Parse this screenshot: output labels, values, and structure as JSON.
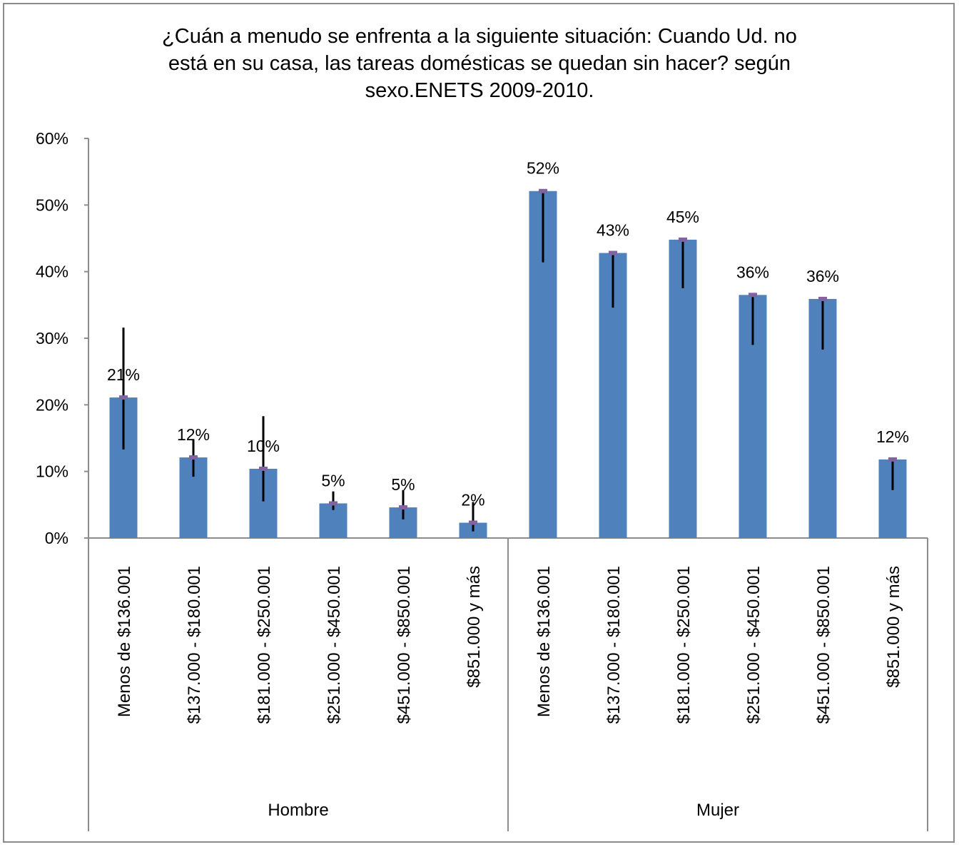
{
  "chart_data": {
    "type": "bar",
    "title_lines": [
      "¿Cuán a menudo se enfrenta a la siguiente situación: Cuando Ud. no",
      "está en su casa, las tareas domésticas se quedan sin hacer? según",
      "sexo.ENETS 2009-2010."
    ],
    "groups": [
      {
        "name": "Hombre",
        "categories": [
          "Menos de $136.001",
          "$137.000 - $180.001",
          "$181.000 - $250.001",
          "$251.000 - $450.001",
          "$451.000 - $850.001",
          "$851.000 y más"
        ],
        "values": [
          0.21,
          0.12,
          0.1,
          0.05,
          0.05,
          0.02
        ],
        "plot_values": [
          0.211,
          0.121,
          0.104,
          0.052,
          0.046,
          0.023
        ],
        "labels": [
          "21%",
          "12%",
          "10%",
          "5%",
          "5%",
          "2%"
        ],
        "error_low": [
          0.133,
          0.092,
          0.055,
          0.042,
          0.028,
          0.01
        ],
        "error_high": [
          0.316,
          0.147,
          0.183,
          0.07,
          0.072,
          0.054
        ]
      },
      {
        "name": "Mujer",
        "categories": [
          "Menos de $136.001",
          "$137.000 - $180.001",
          "$181.000 - $250.001",
          "$251.000 - $450.001",
          "$451.000 - $850.001",
          "$851.000 y más"
        ],
        "values": [
          0.52,
          0.43,
          0.45,
          0.36,
          0.36,
          0.12
        ],
        "plot_values": [
          0.521,
          0.428,
          0.448,
          0.365,
          0.359,
          0.118
        ],
        "labels": [
          "52%",
          "43%",
          "45%",
          "36%",
          "36%",
          "12%"
        ],
        "error_low": [
          0.414,
          0.346,
          0.375,
          0.29,
          0.283,
          0.072
        ],
        "error_high": [
          0.518,
          0.426,
          0.446,
          0.363,
          0.356,
          0.116
        ]
      }
    ],
    "ylim": [
      0,
      0.6
    ],
    "y_ticks": [
      {
        "value": 0,
        "label": "0%"
      },
      {
        "value": 0.1,
        "label": "10%"
      },
      {
        "value": 0.2,
        "label": "20%"
      },
      {
        "value": 0.3,
        "label": "30%"
      },
      {
        "value": 0.4,
        "label": "40%"
      },
      {
        "value": 0.5,
        "label": "50%"
      },
      {
        "value": 0.6,
        "label": "60%"
      }
    ],
    "grid": false,
    "legend": "none",
    "colors": {
      "bar": "#4f81bd",
      "marker": "#8064a2",
      "error_bar": "#000000",
      "axis": "#8c8c8c"
    }
  }
}
